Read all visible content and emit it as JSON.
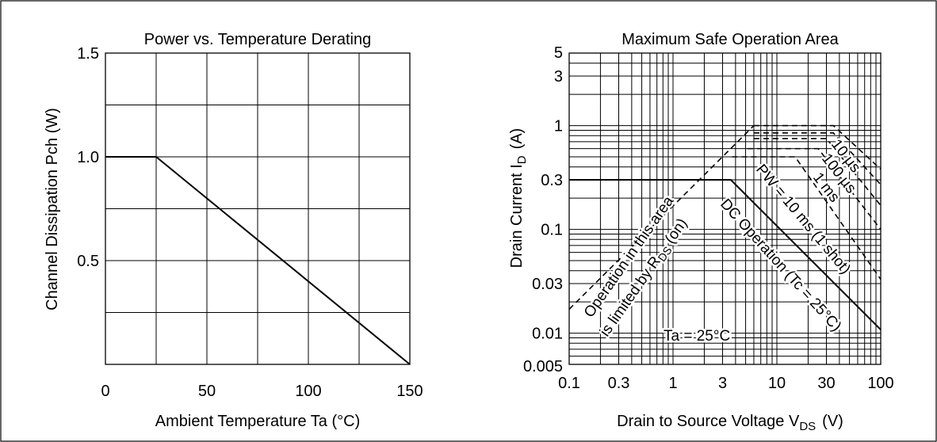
{
  "chart_data": [
    {
      "type": "line",
      "title": "Power vs. Temperature Derating",
      "xlabel": "Ambient Temperature Ta  (°C)",
      "ylabel": "Channel Dissipation Pch  (W)",
      "xlim": [
        0,
        150
      ],
      "ylim": [
        0,
        1.5
      ],
      "x_ticks": [
        "0",
        "50",
        "100",
        "150"
      ],
      "y_ticks": [
        "0.5",
        "1.0",
        "1.5"
      ],
      "grid": true,
      "series": [
        {
          "x": [
            0,
            25,
            150
          ],
          "y": [
            1.0,
            1.0,
            0
          ]
        }
      ]
    },
    {
      "type": "line",
      "title": "Maximum Safe Operation Area",
      "xlabel": "Drain to Source Voltage V",
      "xlabel_sub": "DS",
      "xlabel_unit": "(V)",
      "ylabel": "Drain Current I",
      "ylabel_sub": "D",
      "ylabel_unit": "(A)",
      "xscale": "log",
      "yscale": "log",
      "xlim": [
        0.1,
        100
      ],
      "ylim": [
        0.005,
        5
      ],
      "x_ticks": [
        "0.1",
        "0.3",
        "1",
        "3",
        "10",
        "30",
        "100"
      ],
      "y_ticks": [
        "0.005",
        "0.01",
        "0.03",
        "0.1",
        "0.3",
        "1",
        "3",
        "5"
      ],
      "grid": true,
      "series": [
        {
          "style": "solid",
          "x": [
            0.1,
            3.6,
            100
          ],
          "y": [
            0.3,
            0.3,
            0.0108
          ]
        },
        {
          "style": "dashed",
          "x": [
            0.1,
            6
          ],
          "y": [
            0.017,
            1.0
          ]
        },
        {
          "style": "dashed",
          "x": [
            3.7,
            15,
            100
          ],
          "y": [
            0.5,
            0.5,
            0.033
          ]
        },
        {
          "style": "dashed",
          "x": [
            5.2,
            25,
            100
          ],
          "y": [
            0.6,
            0.6,
            0.1
          ]
        },
        {
          "style": "dashed",
          "x": [
            6,
            30,
            100
          ],
          "y": [
            0.75,
            0.75,
            0.17
          ]
        },
        {
          "style": "dashed",
          "x": [
            6,
            35,
            100
          ],
          "y": [
            0.85,
            0.85,
            0.27
          ]
        },
        {
          "style": "dashed",
          "x": [
            6,
            35,
            100
          ],
          "y": [
            1.0,
            1.0,
            0.38
          ]
        }
      ],
      "annotations": {
        "curve_10us": "10 µs",
        "curve_100us": "100 µs",
        "curve_1ms": "1 ms",
        "curve_pw10ms": "PW = 10 ms (1 shot)",
        "dc_operation": "DC Operation (Tc = 25°C)",
        "limited_line1": "Operation in this area",
        "limited_line2": "is limited by R",
        "limited_sub": "DS",
        "limited_tail": " (on)",
        "ta_label": "Ta = 25°C"
      }
    }
  ]
}
